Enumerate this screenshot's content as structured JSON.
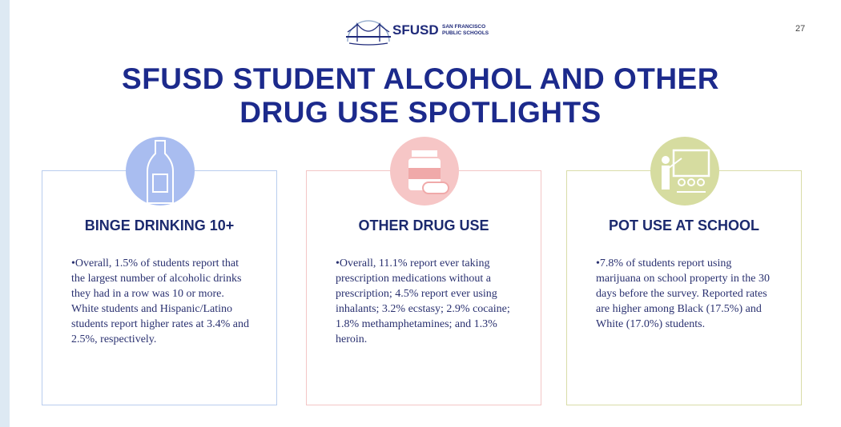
{
  "header": {
    "logo_text": "SFUSD",
    "logo_subtext": [
      "SAN FRANCISCO",
      "PUBLIC SCHOOLS"
    ],
    "page_number": "27"
  },
  "title": [
    "SFUSD STUDENT ALCOHOL AND OTHER",
    "DRUG USE SPOTLIGHTS"
  ],
  "cards": [
    {
      "heading": "BINGE DRINKING 10+",
      "text": "Overall, 1.5% of students report that the largest number of alcoholic drinks they had in a row was 10 or more. White students and Hispanic/Latino students report higher rates at 3.4% and 2.5%, respectively."
    },
    {
      "heading": "OTHER DRUG USE",
      "text": "Overall, 11.1% report ever taking prescription medications without a prescription; 4.5% report ever using inhalants; 3.2% ecstasy; 2.9% cocaine; 1.8% methamphetamines; and 1.3% heroin."
    },
    {
      "heading": "POT USE AT SCHOOL",
      "text": "7.8% of students report using marijuana on school property in the 30 days before the survey. Reported rates are higher among Black (17.5%) and White (17.0%) students."
    }
  ]
}
